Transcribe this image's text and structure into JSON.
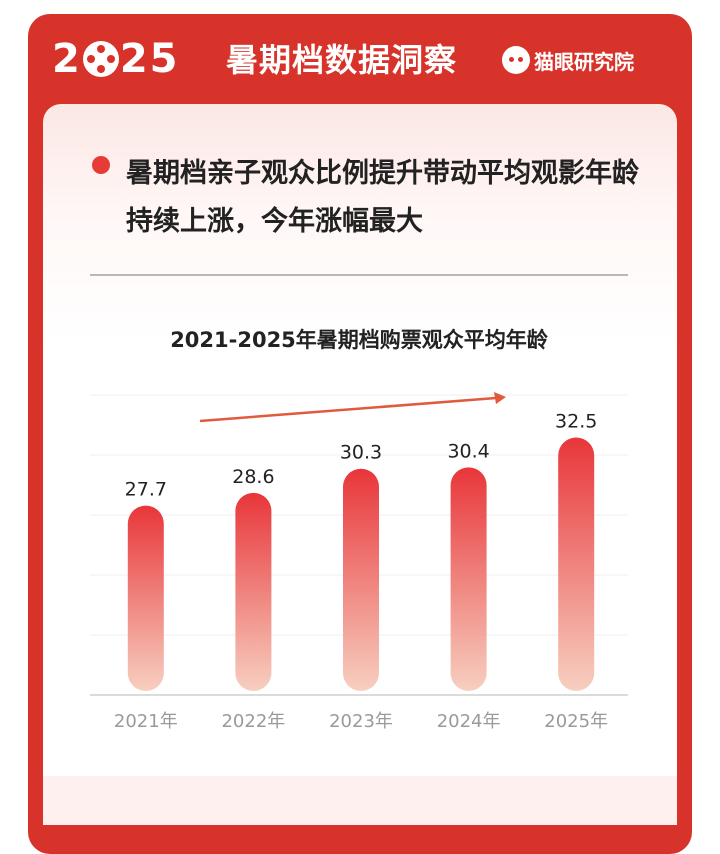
{
  "header": {
    "year_prefix": "2",
    "year_suffix": "25",
    "title": "暑期档数据洞察",
    "brand": "猫眼研究院"
  },
  "headline": {
    "text": "暑期档亲子观众比例提升带动平均观影年龄持续上涨，今年涨幅最大"
  },
  "colors": {
    "frame": "#d8332a",
    "bar_top": "#e8363a",
    "bar_bottom": "#f7cfc0",
    "arrow": "#e25a3c"
  },
  "chart_data": {
    "type": "bar",
    "title": "2021-2025年暑期档购票观众平均年龄",
    "xlabel": "",
    "ylabel": "",
    "categories": [
      "2021年",
      "2022年",
      "2023年",
      "2024年",
      "2025年"
    ],
    "values": [
      27.7,
      28.6,
      30.3,
      30.4,
      32.5
    ],
    "value_labels": [
      "27.7",
      "28.6",
      "30.3",
      "30.4",
      "32.5"
    ],
    "grid": true,
    "annotation": "upward trend arrow"
  }
}
